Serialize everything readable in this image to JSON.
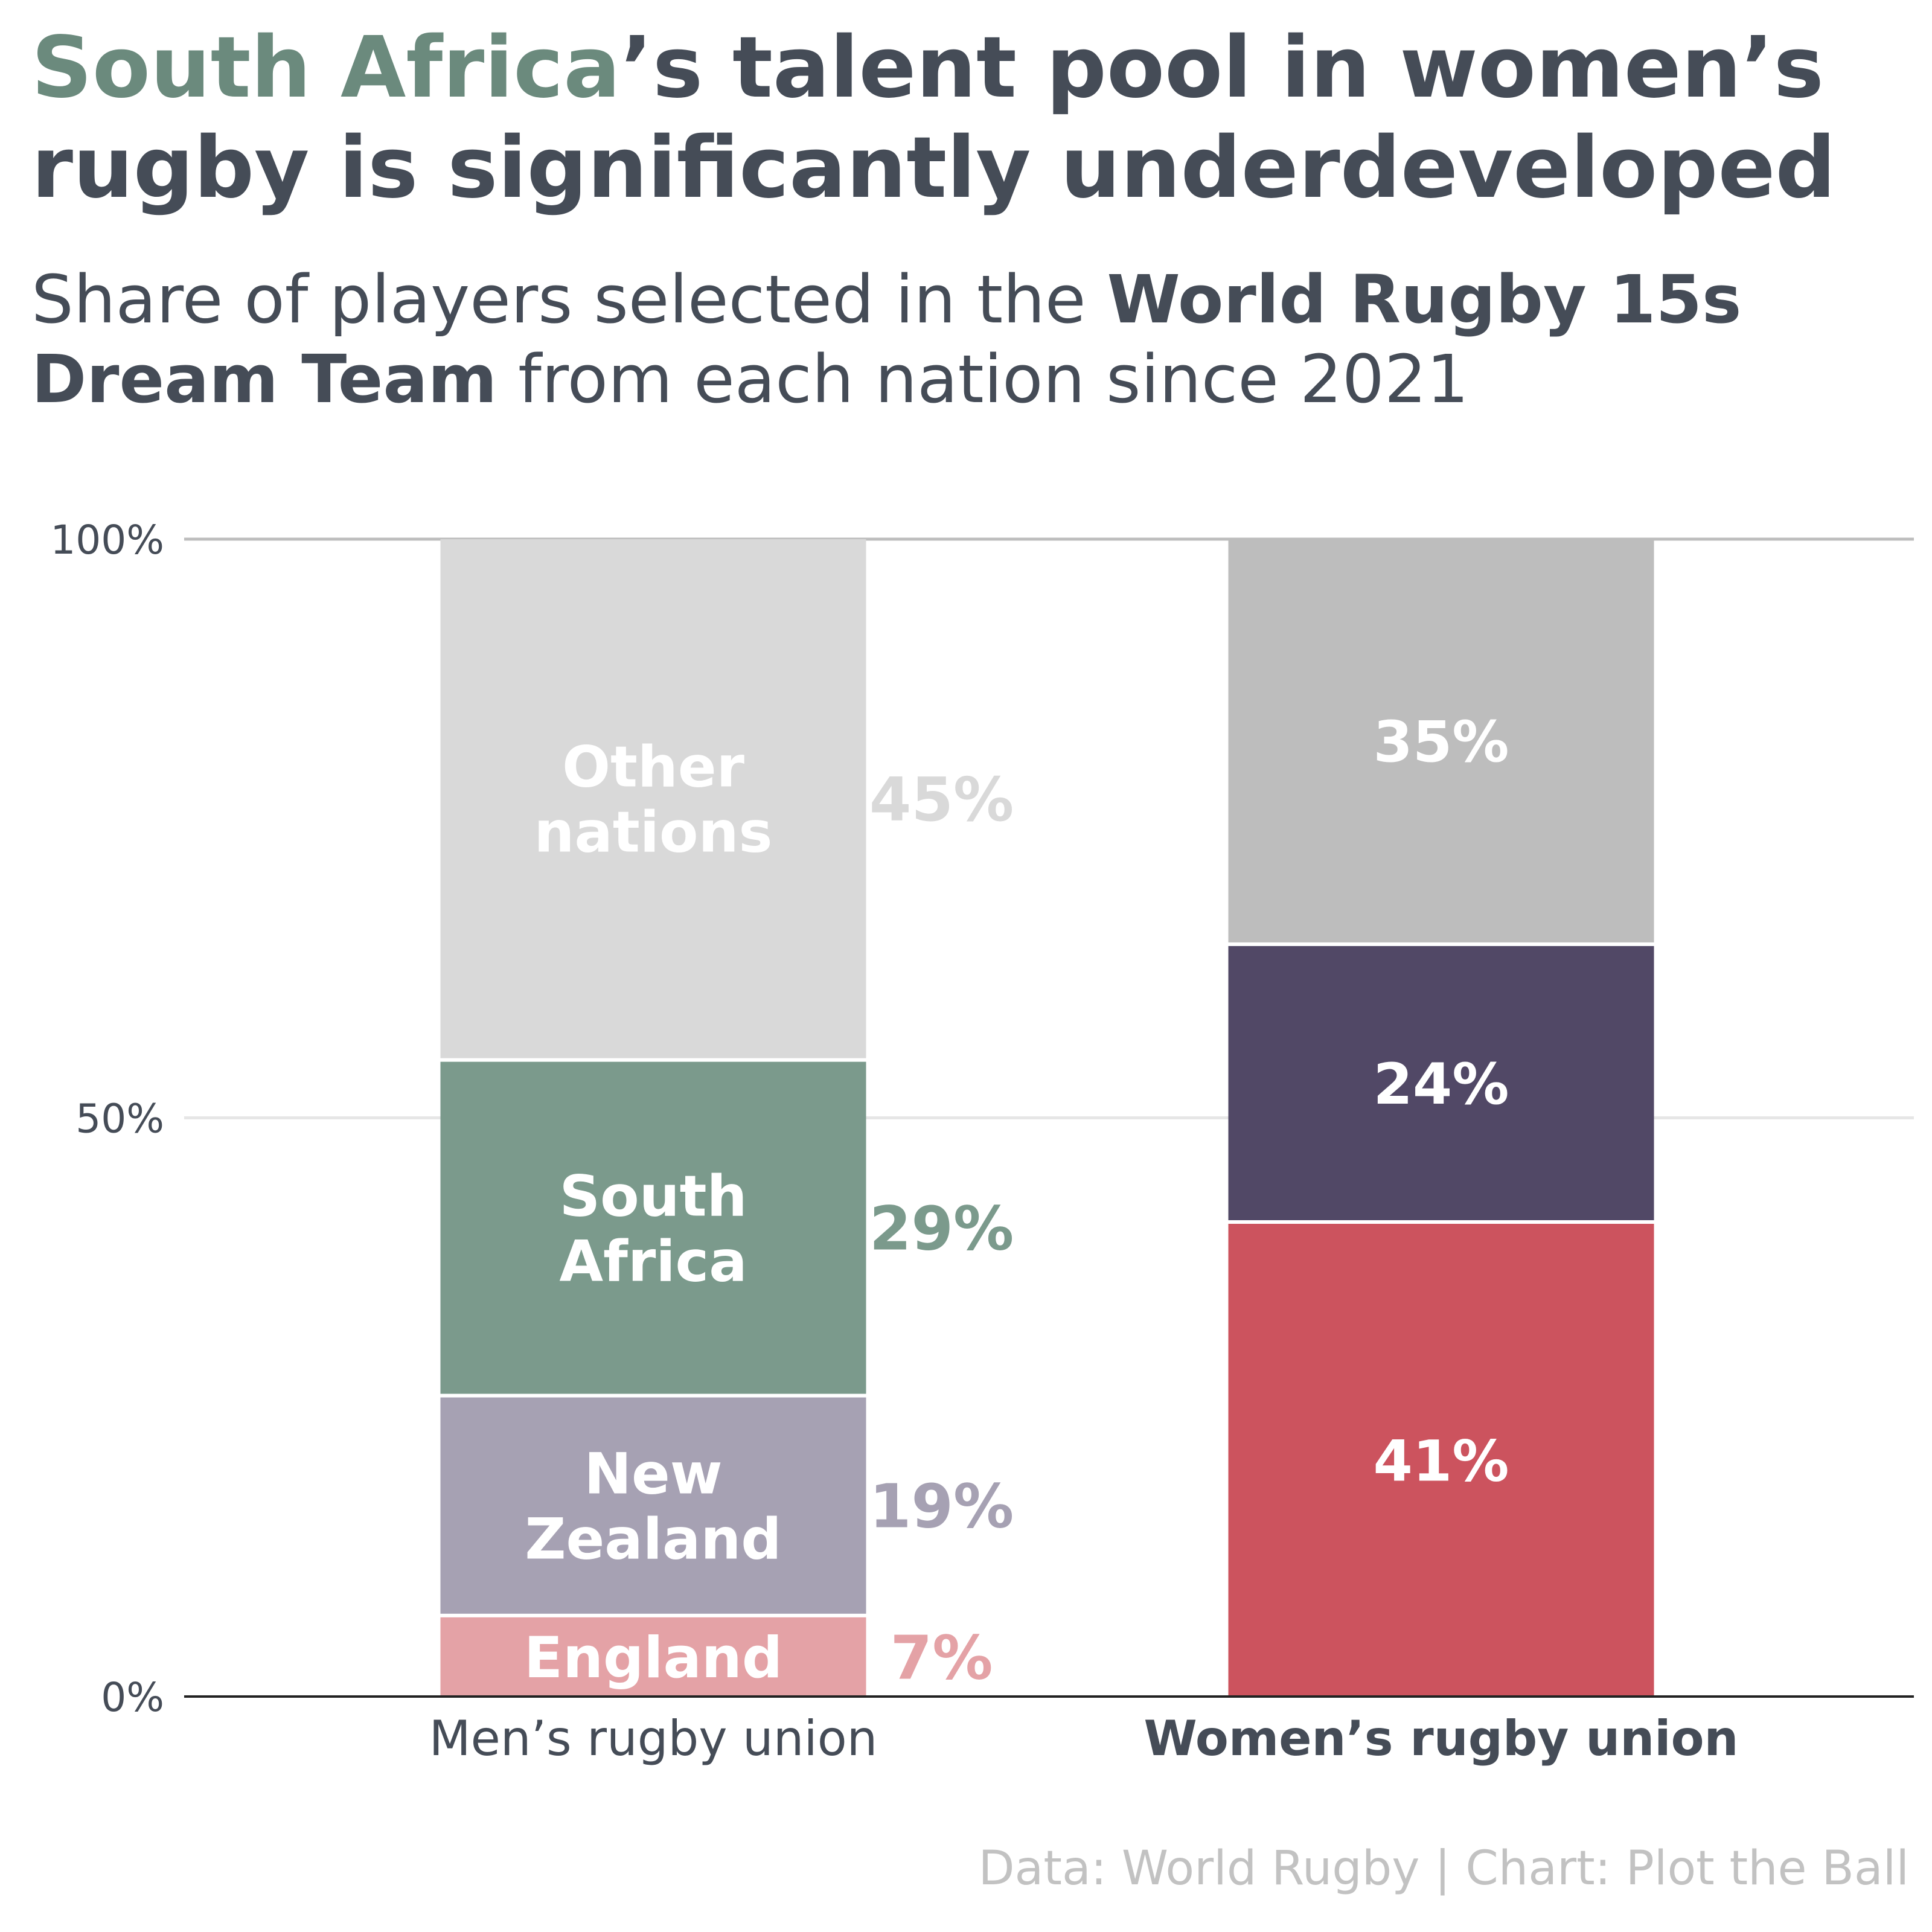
{
  "title": {
    "highlight": "South Africa",
    "rest": "’s talent pool in women’s rugby is significantly underdeveloped"
  },
  "subtitle": {
    "part1": "Share of players selected in the ",
    "bold": "World Rugby 15s Dream Team",
    "part2": " from each nation since 2021"
  },
  "caption": "Data: World Rugby | Chart: Plot the Ball",
  "colors": {
    "text": "#454c57",
    "highlight": "#6b8a7d",
    "grid": "#e6e6e6",
    "top_grid": "#bdbdbd",
    "axis": "#222222",
    "caption": "#c2c2c2"
  },
  "chart_data": {
    "type": "bar",
    "stacked": true,
    "categories": [
      "Men’s rugby union",
      "Women’s rugby union"
    ],
    "category_bold": [
      false,
      true
    ],
    "yticks": [
      "0%",
      "50%",
      "100%"
    ],
    "ylim": [
      0,
      100
    ],
    "grid": true,
    "segments": [
      [
        {
          "name": "England",
          "value": 7,
          "color": "#e4a2a6",
          "inside_label": "England",
          "outside_label": "7%"
        },
        {
          "name": "New Zealand",
          "value": 19,
          "color": "#a6a1b3",
          "inside_label": "New Zealand",
          "outside_label": "19%"
        },
        {
          "name": "South Africa",
          "value": 29,
          "color": "#7b9a8c",
          "inside_label": "South Africa",
          "outside_label": "29%"
        },
        {
          "name": "Other nations",
          "value": 45,
          "color": "#d9d9d9",
          "inside_label": "Other nations",
          "outside_label": "45%"
        }
      ],
      [
        {
          "name": "",
          "value": 41,
          "color": "#cc535e",
          "inside_label": "41%",
          "outside_label": ""
        },
        {
          "name": "",
          "value": 24,
          "color": "#514866",
          "inside_label": "24%",
          "outside_label": ""
        },
        {
          "name": "",
          "value": 35,
          "color": "#bdbdbd",
          "inside_label": "35%",
          "outside_label": ""
        }
      ]
    ]
  }
}
